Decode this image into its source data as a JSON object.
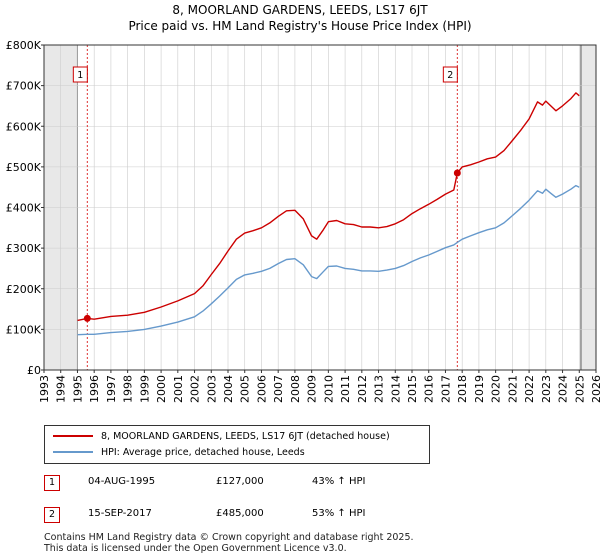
{
  "title_line1": "8, MOORLAND GARDENS, LEEDS, LS17 6JT",
  "title_line2": "Price paid vs. HM Land Registry's House Price Index (HPI)",
  "legend": {
    "property_label": "8, MOORLAND GARDENS, LEEDS, LS17 6JT (detached house)",
    "hpi_label": "HPI: Average price, detached house, Leeds",
    "property_color": "#cc0000",
    "hpi_color": "#6699cc"
  },
  "sales": [
    {
      "num": "1",
      "date": "04-AUG-1995",
      "price": "£127,000",
      "hpi": "43% ↑ HPI"
    },
    {
      "num": "2",
      "date": "15-SEP-2017",
      "price": "£485,000",
      "hpi": "53% ↑ HPI"
    }
  ],
  "footer_line1": "Contains HM Land Registry data © Crown copyright and database right 2025.",
  "footer_line2": "This data is licensed under the Open Government Licence v3.0.",
  "chart_data": {
    "type": "line",
    "title": "8, MOORLAND GARDENS, LEEDS, LS17 6JT — Price paid vs. HM Land Registry's House Price Index (HPI)",
    "xlabel": "",
    "ylabel": "",
    "xlim": [
      1993,
      2026
    ],
    "ylim": [
      0,
      800000
    ],
    "y_ticks": [
      {
        "value": 0,
        "label": "£0"
      },
      {
        "value": 100000,
        "label": "£100K"
      },
      {
        "value": 200000,
        "label": "£200K"
      },
      {
        "value": 300000,
        "label": "£300K"
      },
      {
        "value": 400000,
        "label": "£400K"
      },
      {
        "value": 500000,
        "label": "£500K"
      },
      {
        "value": 600000,
        "label": "£600K"
      },
      {
        "value": 700000,
        "label": "£700K"
      },
      {
        "value": 800000,
        "label": "£800K"
      }
    ],
    "x_ticks": [
      "1993",
      "1994",
      "1995",
      "1996",
      "1997",
      "1998",
      "1999",
      "2000",
      "2001",
      "2002",
      "2003",
      "2004",
      "2005",
      "2006",
      "2007",
      "2008",
      "2009",
      "2010",
      "2011",
      "2012",
      "2013",
      "2014",
      "2015",
      "2016",
      "2017",
      "2018",
      "2019",
      "2020",
      "2021",
      "2022",
      "2023",
      "2024",
      "2025",
      "2026"
    ],
    "shaded_regions": [
      [
        1993,
        1995.0
      ],
      [
        2025.1,
        2026
      ]
    ],
    "markers": [
      {
        "label": "1",
        "x": 1995.59,
        "y": 127000
      },
      {
        "label": "2",
        "x": 2017.71,
        "y": 485000
      }
    ],
    "series": [
      {
        "name": "8, MOORLAND GARDENS, LEEDS, LS17 6JT (detached house)",
        "color": "#cc0000",
        "x": [
          1995.0,
          1995.59,
          1996.0,
          1997.0,
          1998.0,
          1999.0,
          2000.0,
          2001.0,
          2002.0,
          2002.5,
          2003.0,
          2003.5,
          2004.0,
          2004.5,
          2005.0,
          2005.5,
          2006.0,
          2006.5,
          2007.0,
          2007.5,
          2008.0,
          2008.5,
          2009.0,
          2009.3,
          2009.7,
          2010.0,
          2010.5,
          2011.0,
          2011.5,
          2012.0,
          2012.5,
          2013.0,
          2013.5,
          2014.0,
          2014.5,
          2015.0,
          2015.5,
          2016.0,
          2016.5,
          2017.0,
          2017.5,
          2017.71,
          2018.0,
          2018.5,
          2019.0,
          2019.5,
          2020.0,
          2020.5,
          2021.0,
          2021.5,
          2022.0,
          2022.5,
          2022.8,
          2023.0,
          2023.3,
          2023.6,
          2024.0,
          2024.5,
          2024.8,
          2025.0
        ],
        "values": [
          122000,
          127000,
          125000,
          132000,
          135000,
          142000,
          155000,
          170000,
          188000,
          207000,
          235000,
          262000,
          293000,
          322000,
          337000,
          343000,
          350000,
          362000,
          378000,
          392000,
          393000,
          372000,
          330000,
          322000,
          345000,
          365000,
          368000,
          360000,
          358000,
          352000,
          352000,
          350000,
          353000,
          360000,
          370000,
          385000,
          397000,
          408000,
          420000,
          433000,
          443000,
          485000,
          500000,
          505000,
          512000,
          520000,
          524000,
          540000,
          565000,
          590000,
          618000,
          660000,
          652000,
          662000,
          650000,
          638000,
          650000,
          668000,
          682000,
          675000
        ]
      },
      {
        "name": "HPI: Average price, detached house, Leeds",
        "color": "#6699cc",
        "x": [
          1995.0,
          1995.59,
          1996.0,
          1997.0,
          1998.0,
          1999.0,
          2000.0,
          2001.0,
          2002.0,
          2002.5,
          2003.0,
          2003.5,
          2004.0,
          2004.5,
          2005.0,
          2005.5,
          2006.0,
          2006.5,
          2007.0,
          2007.5,
          2008.0,
          2008.5,
          2009.0,
          2009.3,
          2009.7,
          2010.0,
          2010.5,
          2011.0,
          2011.5,
          2012.0,
          2012.5,
          2013.0,
          2013.5,
          2014.0,
          2014.5,
          2015.0,
          2015.5,
          2016.0,
          2016.5,
          2017.0,
          2017.5,
          2017.71,
          2018.0,
          2018.5,
          2019.0,
          2019.5,
          2020.0,
          2020.5,
          2021.0,
          2021.5,
          2022.0,
          2022.5,
          2022.8,
          2023.0,
          2023.3,
          2023.6,
          2024.0,
          2024.5,
          2024.8,
          2025.0
        ],
        "values": [
          87000,
          88000,
          88000,
          92000,
          95000,
          100000,
          108000,
          118000,
          131000,
          145000,
          163000,
          182000,
          202000,
          223000,
          234000,
          238000,
          243000,
          250000,
          262000,
          272000,
          274000,
          259000,
          230000,
          225000,
          242000,
          255000,
          256000,
          250000,
          248000,
          244000,
          244000,
          243000,
          246000,
          250000,
          257000,
          267000,
          276000,
          283000,
          292000,
          301000,
          308000,
          314000,
          322000,
          330000,
          338000,
          345000,
          350000,
          362000,
          380000,
          398000,
          418000,
          441000,
          435000,
          445000,
          435000,
          425000,
          433000,
          445000,
          454000,
          450000
        ]
      }
    ]
  }
}
